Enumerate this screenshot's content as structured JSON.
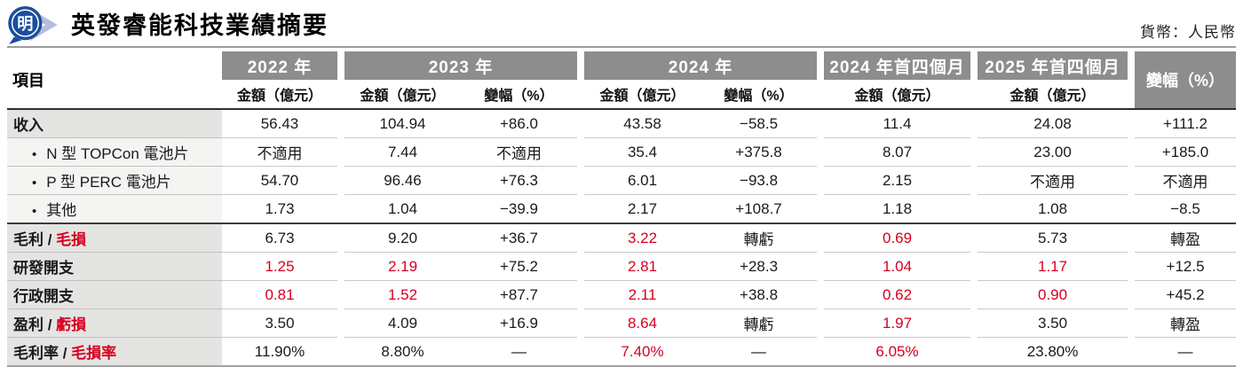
{
  "header": {
    "title": "英發睿能科技業績摘要",
    "currency_note": "貨幣：人民幣",
    "logo_char": "明"
  },
  "colors": {
    "header_bar": "#8d8d8d",
    "label_bg": "#e4e4e2",
    "sublabel_bg": "#f4f4f2",
    "red": "#d6001f",
    "logo_blue": "#1b4f9d",
    "logo_swoosh": "#b7bedd"
  },
  "table": {
    "item_header": "項目",
    "bullet_glyph": "•",
    "groups": [
      {
        "label": "2022 年",
        "subs": [
          "金額（億元）"
        ]
      },
      {
        "label": "2023 年",
        "subs": [
          "金額（億元）",
          "變幅（%）"
        ]
      },
      {
        "label": "2024 年",
        "subs": [
          "金額（億元）",
          "變幅（%）"
        ]
      },
      {
        "label": "2024 年首四個月",
        "subs": [
          "金額（億元）"
        ]
      },
      {
        "label": "2025 年首四個月",
        "subs": [
          "金額（億元）"
        ]
      }
    ],
    "final_col_header": "變幅（%）"
  },
  "chart_data": {
    "type": "table",
    "title": "英發睿能科技業績摘要",
    "currency": "人民幣",
    "columns": [
      "2022 年 金額（億元）",
      "2023 年 金額（億元）",
      "2023 年 變幅（%）",
      "2024 年 金額（億元）",
      "2024 年 變幅（%）",
      "2024 年首四個月 金額（億元）",
      "2025 年首四個月 金額（億元）",
      "變幅（%）"
    ],
    "rows": [
      {
        "item": "收入",
        "item_red": "",
        "bullet": false,
        "bold": true,
        "values": [
          "56.43",
          "104.94",
          "+86.0",
          "43.58",
          "−58.5",
          "11.4",
          "24.08",
          "+111.2"
        ],
        "red_flags": [
          false,
          false,
          false,
          false,
          false,
          false,
          false,
          false
        ]
      },
      {
        "item": "N 型 TOPCon 電池片",
        "item_red": "",
        "bullet": true,
        "bold": false,
        "values": [
          "不適用",
          "7.44",
          "不適用",
          "35.4",
          "+375.8",
          "8.07",
          "23.00",
          "+185.0"
        ],
        "red_flags": [
          false,
          false,
          false,
          false,
          false,
          false,
          false,
          false
        ]
      },
      {
        "item": "P 型 PERC 電池片",
        "item_red": "",
        "bullet": true,
        "bold": false,
        "values": [
          "54.70",
          "96.46",
          "+76.3",
          "6.01",
          "−93.8",
          "2.15",
          "不適用",
          "不適用"
        ],
        "red_flags": [
          false,
          false,
          false,
          false,
          false,
          false,
          false,
          false
        ]
      },
      {
        "item": "其他",
        "item_red": "",
        "bullet": true,
        "bold": false,
        "values": [
          "1.73",
          "1.04",
          "−39.9",
          "2.17",
          "+108.7",
          "1.18",
          "1.08",
          "−8.5"
        ],
        "red_flags": [
          false,
          false,
          false,
          false,
          false,
          false,
          false,
          false
        ]
      },
      {
        "item": "毛利 / ",
        "item_red": "毛損",
        "bullet": false,
        "bold": true,
        "values": [
          "6.73",
          "9.20",
          "+36.7",
          "3.22",
          "轉虧",
          "0.69",
          "5.73",
          "轉盈"
        ],
        "red_flags": [
          false,
          false,
          false,
          true,
          false,
          true,
          false,
          false
        ]
      },
      {
        "item": "研發開支",
        "item_red": "",
        "bullet": false,
        "bold": true,
        "values": [
          "1.25",
          "2.19",
          "+75.2",
          "2.81",
          "+28.3",
          "1.04",
          "1.17",
          "+12.5"
        ],
        "red_flags": [
          true,
          true,
          false,
          true,
          false,
          true,
          true,
          false
        ]
      },
      {
        "item": "行政開支",
        "item_red": "",
        "bullet": false,
        "bold": true,
        "values": [
          "0.81",
          "1.52",
          "+87.7",
          "2.11",
          "+38.8",
          "0.62",
          "0.90",
          "+45.2"
        ],
        "red_flags": [
          true,
          true,
          false,
          true,
          false,
          true,
          true,
          false
        ]
      },
      {
        "item": "盈利 / ",
        "item_red": "虧損",
        "bullet": false,
        "bold": true,
        "values": [
          "3.50",
          "4.09",
          "+16.9",
          "8.64",
          "轉虧",
          "1.97",
          "3.50",
          "轉盈"
        ],
        "red_flags": [
          false,
          false,
          false,
          true,
          false,
          true,
          false,
          false
        ]
      },
      {
        "item": "毛利率 / ",
        "item_red": "毛損率",
        "bullet": false,
        "bold": true,
        "values": [
          "11.90%",
          "8.80%",
          "—",
          "7.40%",
          "—",
          "6.05%",
          "23.80%",
          "—"
        ],
        "red_flags": [
          false,
          false,
          false,
          true,
          false,
          true,
          false,
          false
        ]
      }
    ]
  }
}
